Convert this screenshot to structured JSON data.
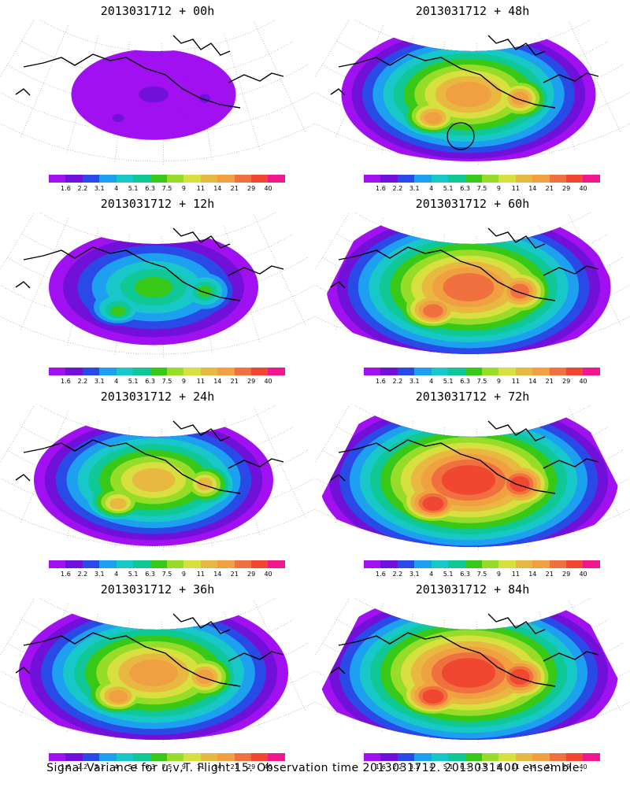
{
  "caption": "Signal Variance for u,v,T. Flight 15. Observation time 2013031712. 2013031400 ensemble.",
  "panels": [
    {
      "title": "2013031712 + 00h",
      "spread": 0.55,
      "peak": 1
    },
    {
      "title": "2013031712 + 48h",
      "spread": 0.85,
      "peak": 10,
      "marker": "circle"
    },
    {
      "title": "2013031712 + 12h",
      "spread": 0.7,
      "peak": 6
    },
    {
      "title": "2013031712 + 60h",
      "spread": 0.95,
      "peak": 11
    },
    {
      "title": "2013031712 + 24h",
      "spread": 0.8,
      "peak": 9
    },
    {
      "title": "2013031712 + 72h",
      "spread": 1.0,
      "peak": 12
    },
    {
      "title": "2013031712 + 36h",
      "spread": 0.9,
      "peak": 10
    },
    {
      "title": "2013031712 + 84h",
      "spread": 1.0,
      "peak": 12
    }
  ],
  "colorbar": {
    "labels": [
      "1.6",
      "2.2",
      "3.1",
      "4",
      "5.1",
      "6.3",
      "7.5",
      "9",
      "11",
      "14",
      "21",
      "29",
      "40"
    ],
    "colors": [
      "#a010f0",
      "#7010d8",
      "#2a4ae8",
      "#1ea0f0",
      "#18c8c8",
      "#10c896",
      "#38c818",
      "#96dc28",
      "#d8e040",
      "#e8b840",
      "#f0a040",
      "#f07040",
      "#f04830",
      "#f01890"
    ]
  }
}
